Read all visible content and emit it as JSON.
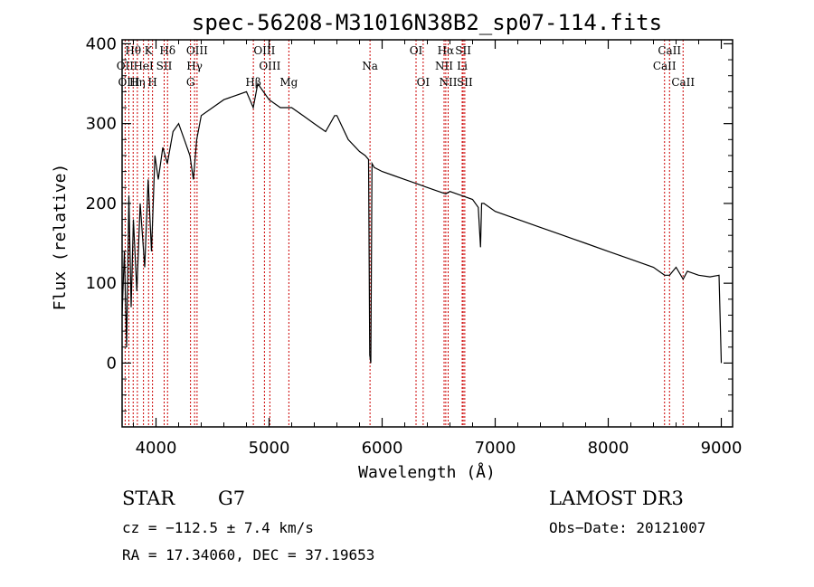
{
  "chart_data": {
    "type": "line",
    "title": "spec-56208-M31016N38B2_sp07-114.fits",
    "xlabel": "Wavelength (Å)",
    "ylabel": "Flux (relative)",
    "xlim": [
      3700,
      9100
    ],
    "ylim": [
      -80,
      405
    ],
    "xticks": [
      4000,
      5000,
      6000,
      7000,
      8000,
      9000
    ],
    "yticks": [
      0,
      100,
      200,
      300,
      400
    ],
    "grid": false,
    "series": [
      {
        "name": "Flux",
        "x": [
          3700,
          3720,
          3740,
          3760,
          3780,
          3800,
          3830,
          3860,
          3900,
          3930,
          3960,
          3990,
          4020,
          4060,
          4100,
          4150,
          4200,
          4250,
          4300,
          4330,
          4360,
          4400,
          4500,
          4600,
          4700,
          4800,
          4860,
          4900,
          5000,
          5100,
          5200,
          5300,
          5400,
          5500,
          5580,
          5600,
          5700,
          5800,
          5850,
          5880,
          5890,
          5900,
          5910,
          5930,
          6000,
          6100,
          6200,
          6300,
          6400,
          6500,
          6562,
          6600,
          6700,
          6800,
          6850,
          6870,
          6880,
          6900,
          7000,
          7200,
          7400,
          7600,
          7800,
          8000,
          8200,
          8400,
          8498,
          8542,
          8600,
          8662,
          8700,
          8800,
          8900,
          8980,
          9000
        ],
        "y": [
          60,
          140,
          20,
          210,
          70,
          180,
          90,
          200,
          120,
          230,
          140,
          260,
          230,
          270,
          250,
          290,
          300,
          280,
          260,
          230,
          280,
          310,
          320,
          330,
          335,
          340,
          320,
          350,
          330,
          320,
          320,
          310,
          300,
          290,
          310,
          310,
          280,
          265,
          260,
          255,
          10,
          0,
          250,
          245,
          240,
          235,
          230,
          225,
          220,
          215,
          212,
          215,
          210,
          205,
          195,
          145,
          200,
          200,
          190,
          180,
          170,
          160,
          150,
          140,
          130,
          120,
          110,
          110,
          120,
          105,
          115,
          110,
          108,
          110,
          0
        ]
      }
    ],
    "spectral_lines": [
      {
        "name": "Hθ",
        "wavelength": 3798,
        "row": 1
      },
      {
        "name": "OII",
        "wavelength": 3727,
        "row": 2
      },
      {
        "name": "OIII",
        "wavelength": 3760,
        "row": 3
      },
      {
        "name": "K",
        "wavelength": 3934,
        "row": 1
      },
      {
        "name": "HeI",
        "wavelength": 3889,
        "row": 2
      },
      {
        "name": "Hη",
        "wavelength": 3835,
        "row": 3
      },
      {
        "name": "Hδ",
        "wavelength": 4102,
        "row": 1
      },
      {
        "name": "SII",
        "wavelength": 4072,
        "row": 2
      },
      {
        "name": "H",
        "wavelength": 3969,
        "row": 3
      },
      {
        "name": "OIII",
        "wavelength": 4363,
        "row": 1
      },
      {
        "name": "Hγ",
        "wavelength": 4341,
        "row": 2
      },
      {
        "name": "G",
        "wavelength": 4305,
        "row": 3
      },
      {
        "name": "OIII",
        "wavelength": 4959,
        "row": 1
      },
      {
        "name": "OIII",
        "wavelength": 5007,
        "row": 2
      },
      {
        "name": "Hβ",
        "wavelength": 4861,
        "row": 3
      },
      {
        "name": "Mg",
        "wavelength": 5175,
        "row": 3
      },
      {
        "name": "Na",
        "wavelength": 5893,
        "row": 2
      },
      {
        "name": "OI",
        "wavelength": 6300,
        "row": 1
      },
      {
        "name": "OI",
        "wavelength": 6363,
        "row": 3
      },
      {
        "name": "Hα",
        "wavelength": 6563,
        "row": 1
      },
      {
        "name": "NII",
        "wavelength": 6548,
        "row": 2
      },
      {
        "name": "NII",
        "wavelength": 6584,
        "row": 3
      },
      {
        "name": "SII",
        "wavelength": 6717,
        "row": 1
      },
      {
        "name": "Li",
        "wavelength": 6708,
        "row": 2
      },
      {
        "name": "SII",
        "wavelength": 6731,
        "row": 3
      },
      {
        "name": "CaII",
        "wavelength": 8542,
        "row": 1
      },
      {
        "name": "CaII",
        "wavelength": 8498,
        "row": 2
      },
      {
        "name": "CaII",
        "wavelength": 8662,
        "row": 3
      }
    ]
  },
  "info": {
    "class_label": "STAR",
    "subclass": "G7",
    "survey": "LAMOST DR3",
    "cz": "cz = −112.5 ± 7.4 km/s",
    "obs_date": "Obs−Date: 20121007",
    "coords": "RA =  17.34060, DEC =  37.19653"
  },
  "colors": {
    "line_marker": "#cc0000",
    "spectrum": "#000000",
    "axes": "#000000"
  }
}
